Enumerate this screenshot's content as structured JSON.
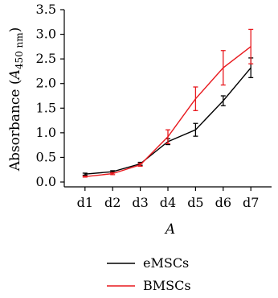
{
  "chart_data": {
    "type": "line",
    "title": "",
    "xlabel": "A",
    "ylabel_prefix": "Absorbance (",
    "ylabel_var": "A",
    "ylabel_sub": "450 nm",
    "ylabel_suffix": ")",
    "ylim": [
      0,
      3.5
    ],
    "yticks": [
      "0.0",
      "0.5",
      "1.0",
      "1.5",
      "2.0",
      "2.5",
      "3.0",
      "3.5"
    ],
    "categories": [
      "d1",
      "d2",
      "d3",
      "d4",
      "d5",
      "d6",
      "d7"
    ],
    "series": [
      {
        "name": "eMSCs",
        "color": "#000000",
        "values": [
          0.16,
          0.21,
          0.37,
          0.82,
          1.06,
          1.65,
          2.32
        ],
        "errors": [
          0.02,
          0.02,
          0.03,
          0.06,
          0.13,
          0.1,
          0.2
        ]
      },
      {
        "name": "BMSCs",
        "color": "#e8191e",
        "values": [
          0.11,
          0.17,
          0.35,
          0.92,
          1.69,
          2.32,
          2.75
        ],
        "errors": [
          0.01,
          0.02,
          0.03,
          0.14,
          0.24,
          0.35,
          0.35
        ]
      }
    ],
    "legend_position": "bottom"
  }
}
